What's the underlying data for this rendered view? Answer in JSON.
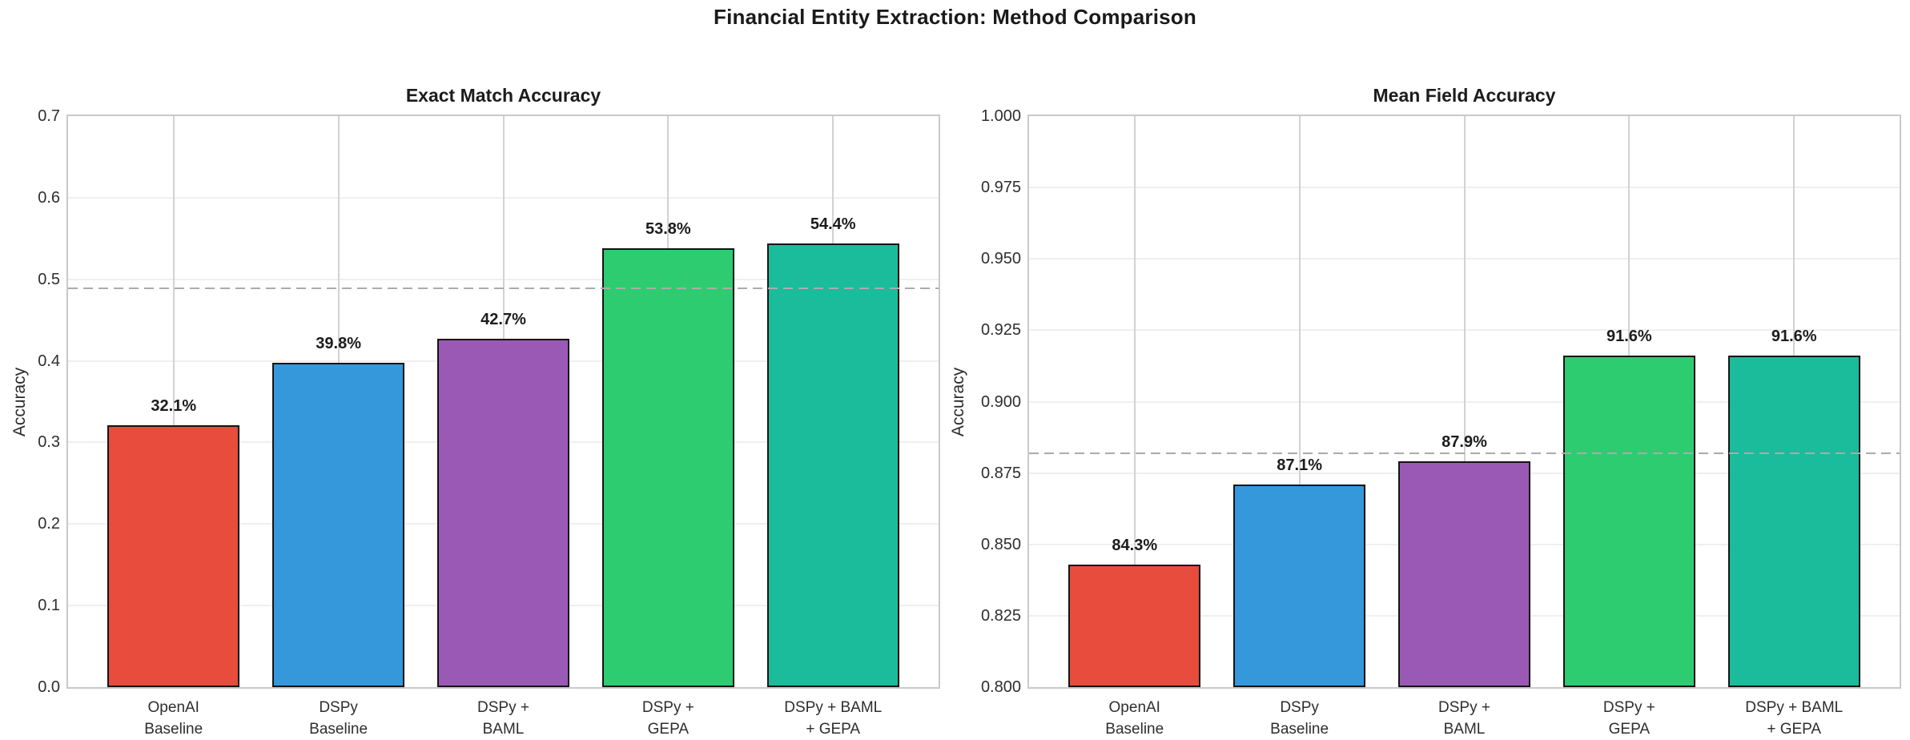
{
  "suptitle": "Financial Entity Extraction: Method Comparison",
  "palette": {
    "bar_edge": "#141414",
    "spine": "#c9c9c9",
    "hgrid": "#efefef",
    "vgrid": "#d2d2d2",
    "text": "#1c1c1c"
  },
  "chart_data": [
    {
      "type": "bar",
      "title": "Exact Match Accuracy",
      "xlabel": "",
      "ylabel": "Accuracy",
      "categories": [
        [
          "OpenAI",
          "Baseline"
        ],
        [
          "DSPy",
          "Baseline"
        ],
        [
          "DSPy +",
          "BAML"
        ],
        [
          "DSPy +",
          "GEPA"
        ],
        [
          "DSPy + BAML",
          "+ GEPA"
        ]
      ],
      "values": [
        0.321,
        0.398,
        0.427,
        0.538,
        0.544
      ],
      "value_labels": [
        "32.1%",
        "39.8%",
        "42.7%",
        "53.8%",
        "54.4%"
      ],
      "bar_colors": [
        "#e74c3c",
        "#3498db",
        "#9b59b6",
        "#2ecc71",
        "#1abc9c"
      ],
      "ylim": [
        0.0,
        0.7
      ],
      "yticks": [
        {
          "v": 0.0,
          "label": "0.0"
        },
        {
          "v": 0.1,
          "label": "0.1"
        },
        {
          "v": 0.2,
          "label": "0.2"
        },
        {
          "v": 0.3,
          "label": "0.3"
        },
        {
          "v": 0.4,
          "label": "0.4"
        },
        {
          "v": 0.5,
          "label": "0.5"
        },
        {
          "v": 0.6,
          "label": "0.6"
        },
        {
          "v": 0.7,
          "label": "0.7"
        }
      ],
      "ref_line": {
        "v": 0.489,
        "style": "dashed",
        "color": "#ababab"
      },
      "grid": true,
      "legend": null
    },
    {
      "type": "bar",
      "title": "Mean Field Accuracy",
      "xlabel": "",
      "ylabel": "Accuracy",
      "categories": [
        [
          "OpenAI",
          "Baseline"
        ],
        [
          "DSPy",
          "Baseline"
        ],
        [
          "DSPy +",
          "BAML"
        ],
        [
          "DSPy +",
          "GEPA"
        ],
        [
          "DSPy + BAML",
          "+ GEPA"
        ]
      ],
      "values": [
        0.843,
        0.871,
        0.879,
        0.916,
        0.916
      ],
      "value_labels": [
        "84.3%",
        "87.1%",
        "87.9%",
        "91.6%",
        "91.6%"
      ],
      "bar_colors": [
        "#e74c3c",
        "#3498db",
        "#9b59b6",
        "#2ecc71",
        "#1abc9c"
      ],
      "ylim": [
        0.8,
        1.0
      ],
      "yticks": [
        {
          "v": 0.8,
          "label": "0.800"
        },
        {
          "v": 0.825,
          "label": "0.825"
        },
        {
          "v": 0.85,
          "label": "0.850"
        },
        {
          "v": 0.875,
          "label": "0.875"
        },
        {
          "v": 0.9,
          "label": "0.900"
        },
        {
          "v": 0.925,
          "label": "0.925"
        },
        {
          "v": 0.95,
          "label": "0.950"
        },
        {
          "v": 0.975,
          "label": "0.975"
        },
        {
          "v": 1.0,
          "label": "1.000"
        }
      ],
      "ref_line": {
        "v": 0.882,
        "style": "dashed",
        "color": "#ababab"
      },
      "grid": true,
      "legend": null
    }
  ]
}
